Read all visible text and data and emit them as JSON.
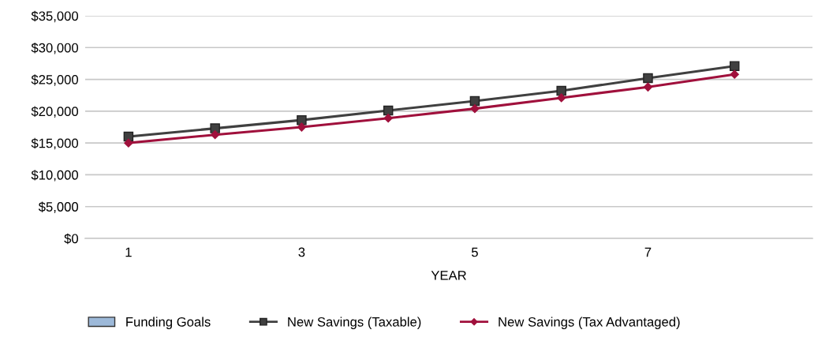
{
  "chart_data": {
    "type": "line",
    "xlabel": "YEAR",
    "categories": [
      "1",
      null,
      "3",
      null,
      "5",
      null,
      "7",
      null
    ],
    "series": [
      {
        "name": "Funding Goals",
        "type": "bar",
        "color": "#9db9d9",
        "values": [
          null,
          null,
          null,
          null,
          null,
          null,
          null,
          null
        ]
      },
      {
        "name": "New Savings (Taxable)",
        "color": "#404040",
        "marker": "square",
        "values": [
          16000,
          17300,
          18600,
          20100,
          21600,
          23200,
          25200,
          27100
        ]
      },
      {
        "name": "New Savings (Tax Advantaged)",
        "color": "#a0103c",
        "marker": "diamond",
        "values": [
          15000,
          16300,
          17500,
          18900,
          20400,
          22100,
          23800,
          25800
        ]
      }
    ],
    "ylim": [
      0,
      35000
    ],
    "yticks": [
      {
        "value": 0,
        "label": "$0"
      },
      {
        "value": 5000,
        "label": "$5,000"
      },
      {
        "value": 10000,
        "label": "$10,000"
      },
      {
        "value": 15000,
        "label": "$15,000"
      },
      {
        "value": 20000,
        "label": "$20,000"
      },
      {
        "value": 25000,
        "label": "$25,000"
      },
      {
        "value": 30000,
        "label": "$30,000"
      },
      {
        "value": 35000,
        "label": "$35,000"
      }
    ],
    "grid": "y",
    "legend": "bottom"
  }
}
